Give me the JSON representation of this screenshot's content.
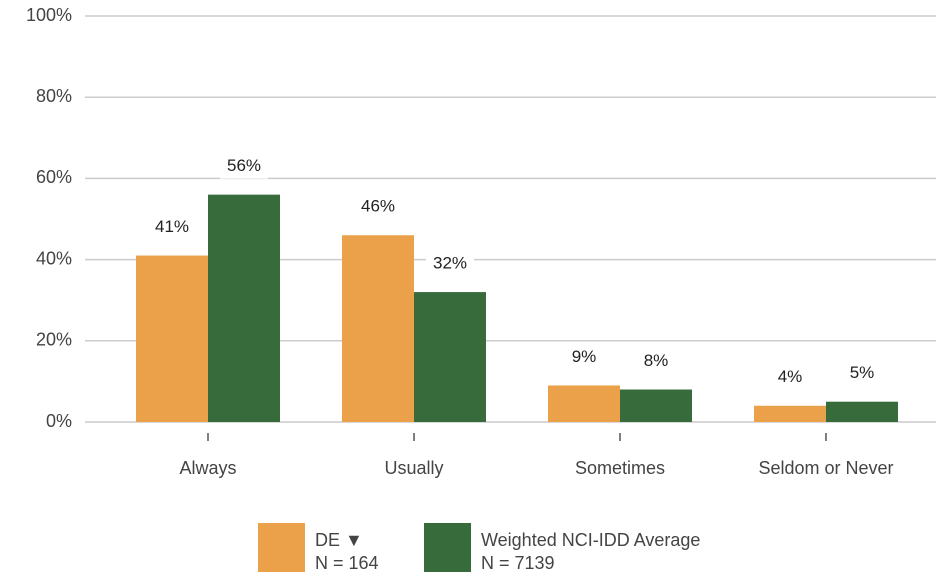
{
  "chart_data": {
    "type": "bar",
    "categories": [
      "Always",
      "Usually",
      "Sometimes",
      "Seldom or Never"
    ],
    "series": [
      {
        "name": "DE ▼",
        "n": "N = 164",
        "color": "#eba14a",
        "values": [
          41,
          46,
          9,
          4
        ],
        "value_labels": [
          "41%",
          "46%",
          "9%",
          "4%"
        ]
      },
      {
        "name": "Weighted NCI-IDD Average",
        "n": "N = 7139",
        "color": "#376b3b",
        "values": [
          56,
          32,
          8,
          5
        ],
        "value_labels": [
          "56%",
          "32%",
          "8%",
          "5%"
        ]
      }
    ],
    "ylim": [
      0,
      100
    ],
    "yticks": [
      {
        "value": 0,
        "label": "0%"
      },
      {
        "value": 20,
        "label": "20%"
      },
      {
        "value": 40,
        "label": "40%"
      },
      {
        "value": 60,
        "label": "60%"
      },
      {
        "value": 80,
        "label": "80%"
      },
      {
        "value": 100,
        "label": "100%"
      }
    ],
    "grid": true,
    "legend": "bottom"
  }
}
